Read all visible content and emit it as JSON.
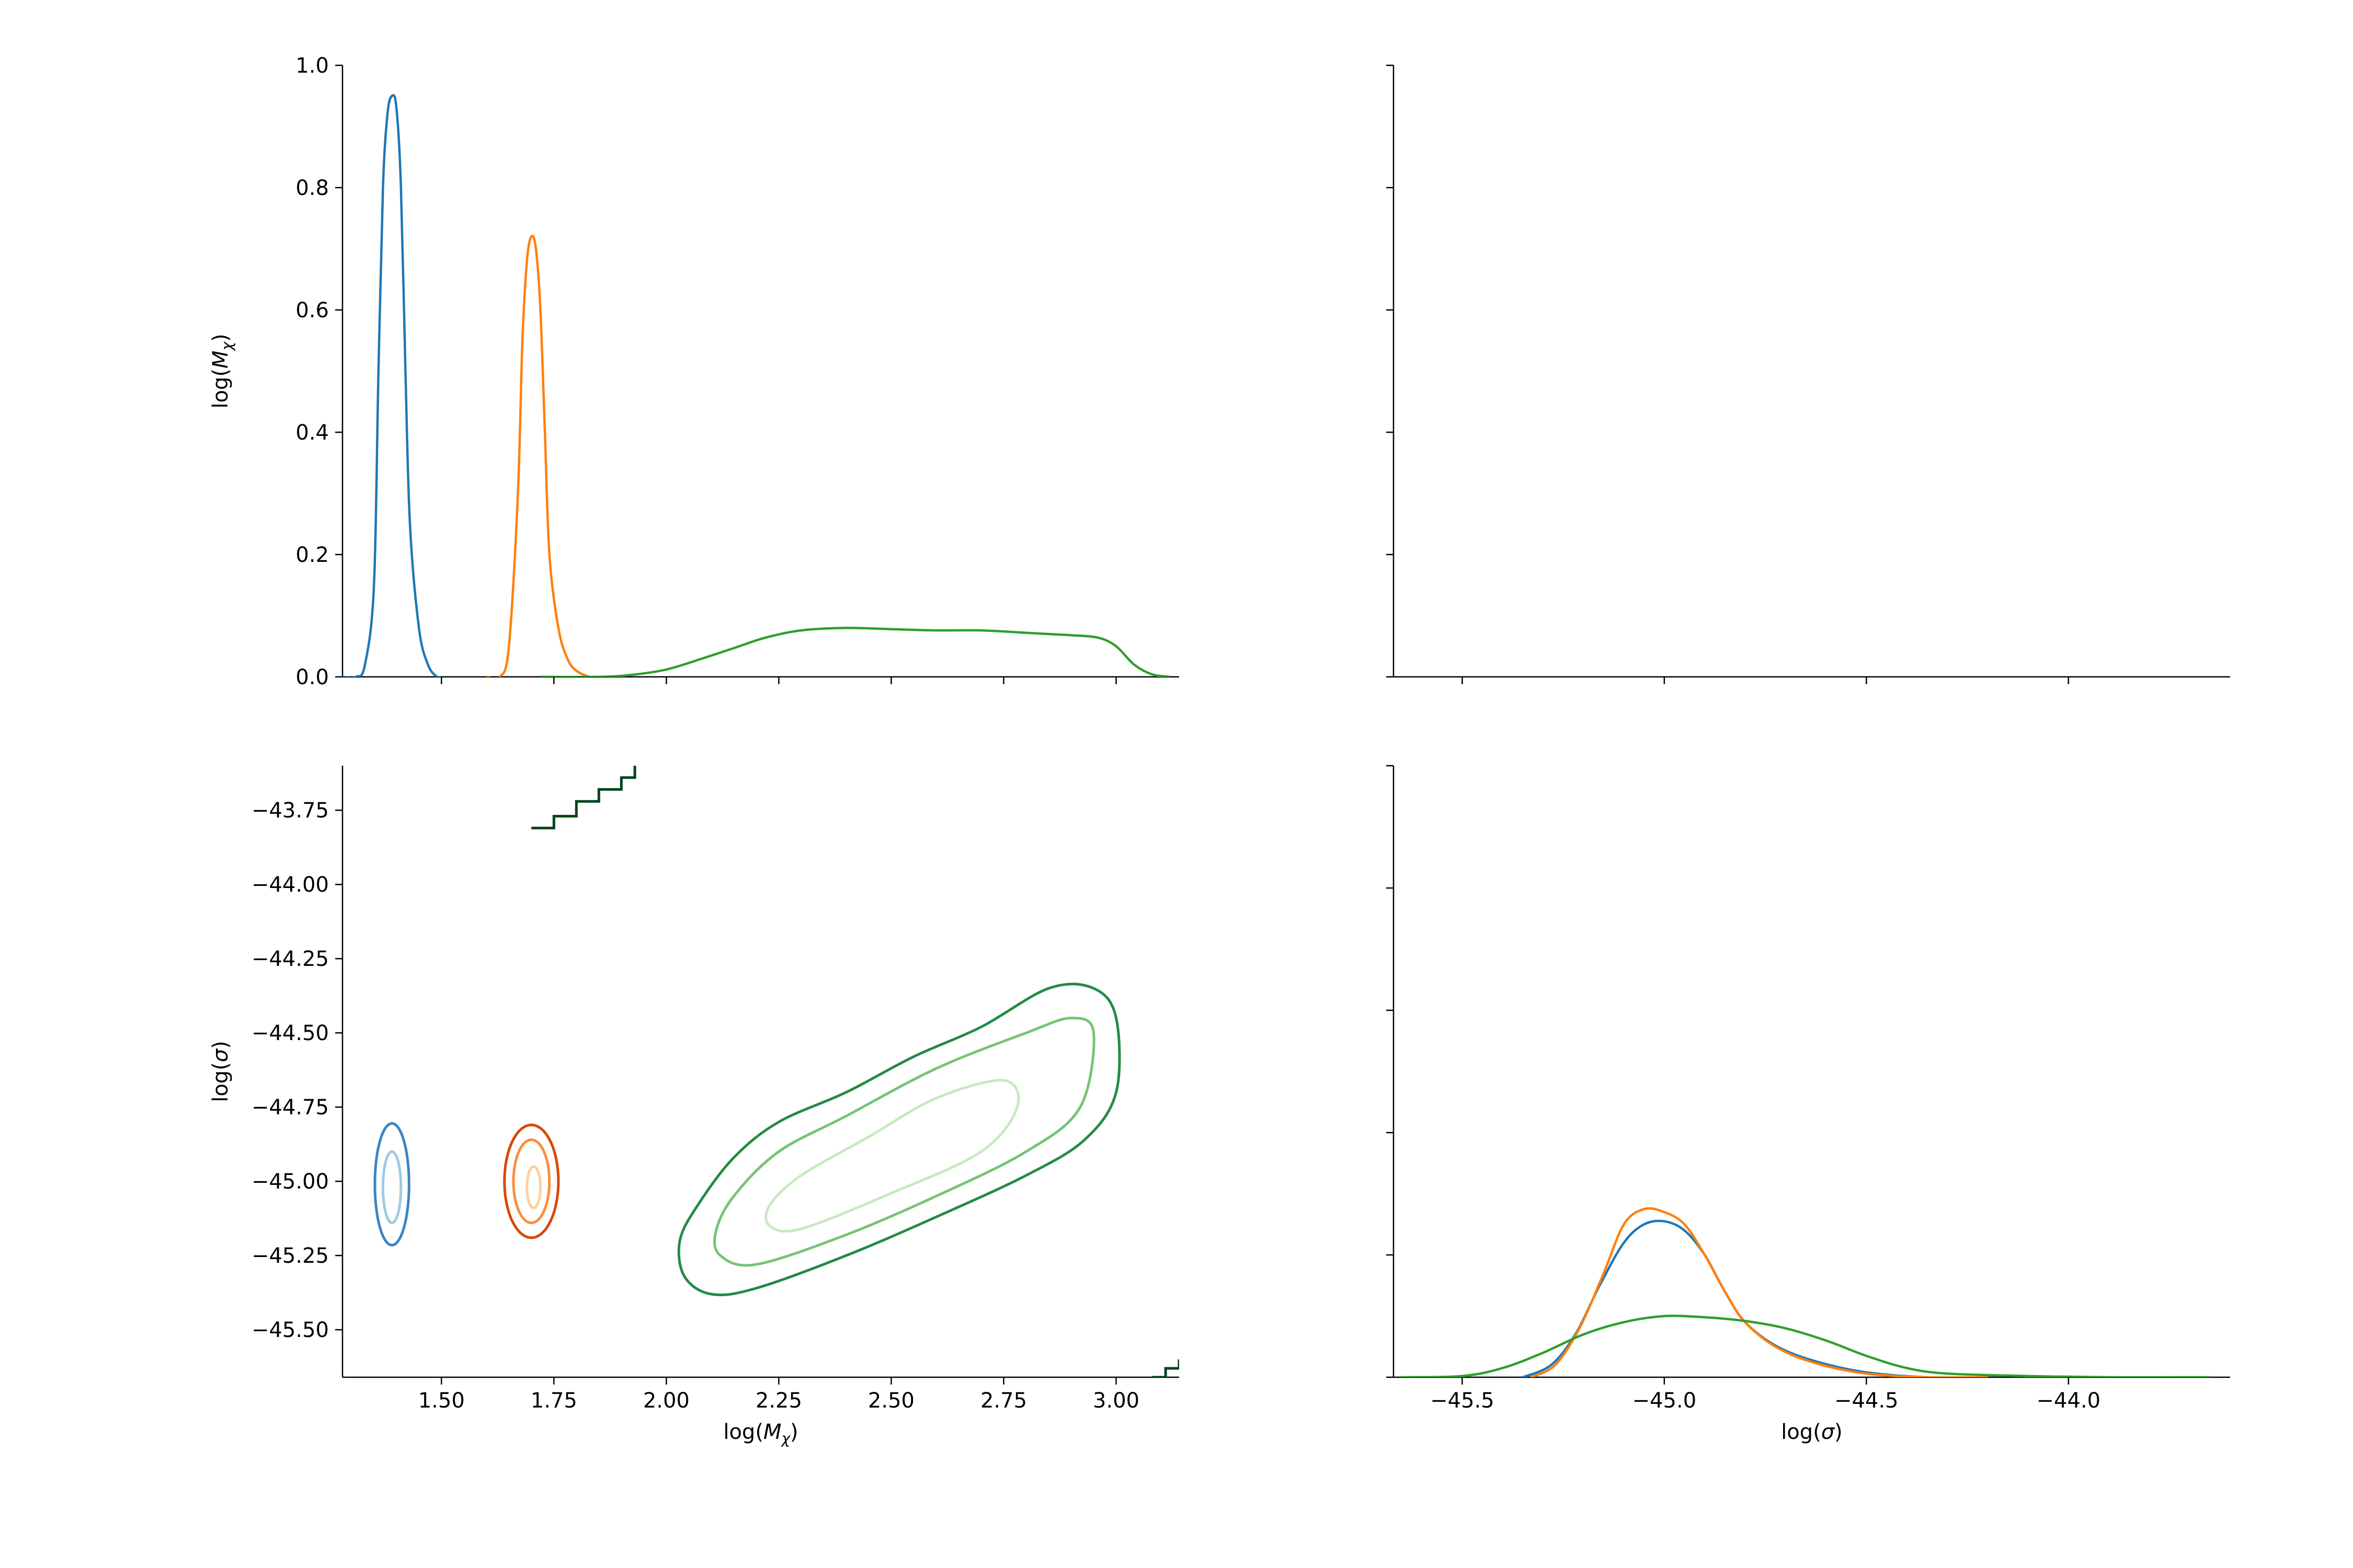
{
  "figure": {
    "layout": "2x2 corner plot"
  },
  "colors": {
    "blue": "#1f77b4",
    "orange": "#ff7f0e",
    "green": "#2ca02c",
    "blue_contours": [
      "#3a85c6",
      "#9ecae1"
    ],
    "orange_contours": [
      "#d94801",
      "#fd8d3c",
      "#fdd0a2"
    ],
    "green_contours": [
      "#238b45",
      "#74c476",
      "#c7e9c0"
    ],
    "stray_contour": "#00441b"
  },
  "chart_data": [
    {
      "id": "top-left",
      "type": "line",
      "title": "",
      "xlabel": "",
      "ylabel": "log(M_χ)",
      "ylabel_parts": [
        "log(",
        "M",
        "χ",
        ")"
      ],
      "xlim": [
        1.28,
        3.14
      ],
      "ylim": [
        0.0,
        1.0
      ],
      "xticks": [
        1.5,
        1.75,
        2.0,
        2.25,
        2.5,
        2.75,
        3.0
      ],
      "show_xtick_labels": false,
      "yticks": [
        0.0,
        0.2,
        0.4,
        0.6,
        0.8,
        1.0
      ],
      "ytick_labels": [
        "0.0",
        "0.2",
        "0.4",
        "0.6",
        "0.8",
        "1.0"
      ],
      "grid": false,
      "legend": "none",
      "series": [
        {
          "color": "blue",
          "points": [
            [
              1.28,
              0.0
            ],
            [
              1.31,
              0.0
            ],
            [
              1.33,
              0.02
            ],
            [
              1.35,
              0.15
            ],
            [
              1.36,
              0.5
            ],
            [
              1.37,
              0.8
            ],
            [
              1.38,
              0.92
            ],
            [
              1.39,
              0.95
            ],
            [
              1.4,
              0.93
            ],
            [
              1.41,
              0.8
            ],
            [
              1.42,
              0.5
            ],
            [
              1.43,
              0.25
            ],
            [
              1.45,
              0.08
            ],
            [
              1.47,
              0.02
            ],
            [
              1.49,
              0.0
            ],
            [
              1.5,
              0.0
            ]
          ]
        },
        {
          "color": "orange",
          "points": [
            [
              1.6,
              0.0
            ],
            [
              1.63,
              0.0
            ],
            [
              1.65,
              0.05
            ],
            [
              1.67,
              0.3
            ],
            [
              1.68,
              0.55
            ],
            [
              1.69,
              0.68
            ],
            [
              1.7,
              0.72
            ],
            [
              1.71,
              0.7
            ],
            [
              1.72,
              0.6
            ],
            [
              1.73,
              0.4
            ],
            [
              1.74,
              0.2
            ],
            [
              1.76,
              0.08
            ],
            [
              1.78,
              0.03
            ],
            [
              1.8,
              0.01
            ],
            [
              1.83,
              0.0
            ],
            [
              1.85,
              0.0
            ]
          ]
        },
        {
          "color": "green",
          "points": [
            [
              1.72,
              0.0
            ],
            [
              1.85,
              0.0
            ],
            [
              1.92,
              0.003
            ],
            [
              2.0,
              0.012
            ],
            [
              2.08,
              0.03
            ],
            [
              2.15,
              0.047
            ],
            [
              2.22,
              0.064
            ],
            [
              2.3,
              0.076
            ],
            [
              2.4,
              0.08
            ],
            [
              2.5,
              0.078
            ],
            [
              2.6,
              0.076
            ],
            [
              2.7,
              0.076
            ],
            [
              2.8,
              0.072
            ],
            [
              2.9,
              0.068
            ],
            [
              2.96,
              0.064
            ],
            [
              3.0,
              0.05
            ],
            [
              3.04,
              0.02
            ],
            [
              3.08,
              0.004
            ],
            [
              3.12,
              0.0
            ]
          ]
        }
      ]
    },
    {
      "id": "top-right",
      "type": "line",
      "title": "",
      "xlabel": "",
      "ylabel": "",
      "xlim": [
        -45.67,
        -43.6
      ],
      "ylim": [
        0.0,
        1.0
      ],
      "xticks": [
        -45.5,
        -45.0,
        -44.5,
        -44.0
      ],
      "show_xtick_labels": false,
      "yticks": [
        0.0,
        0.2,
        0.4,
        0.6,
        0.8,
        1.0
      ],
      "show_ytick_labels": false,
      "grid": false,
      "legend": "none",
      "series": []
    },
    {
      "id": "bottom-left",
      "type": "contour",
      "title": "",
      "xlabel": "log(M_χ)",
      "xlabel_parts": [
        "log(",
        "M",
        "χ",
        ")"
      ],
      "ylabel": "log(σ)",
      "ylabel_parts": [
        "log(",
        "σ",
        ")"
      ],
      "xlim": [
        1.28,
        3.14
      ],
      "ylim": [
        -45.66,
        -43.6
      ],
      "xticks": [
        1.5,
        1.75,
        2.0,
        2.25,
        2.5,
        2.75,
        3.0
      ],
      "xtick_labels": [
        "1.50",
        "1.75",
        "2.00",
        "2.25",
        "2.50",
        "2.75",
        "3.00"
      ],
      "yticks": [
        -45.5,
        -45.25,
        -45.0,
        -44.75,
        -44.5,
        -44.25,
        -44.0,
        -43.75
      ],
      "ytick_labels": [
        "−45.50",
        "−45.25",
        "−45.00",
        "−44.75",
        "−44.50",
        "−44.25",
        "−44.00",
        "−43.75"
      ],
      "grid": false,
      "legend": "none",
      "contours": [
        {
          "color": "blue_contours.0",
          "center": [
            1.39,
            -45.01
          ],
          "rx": 0.038,
          "ry": 0.205
        },
        {
          "color": "blue_contours.1",
          "center": [
            1.39,
            -45.02
          ],
          "rx": 0.02,
          "ry": 0.12
        },
        {
          "color": "orange_contours.0",
          "center": [
            1.7,
            -45.0
          ],
          "rx": 0.06,
          "ry": 0.19
        },
        {
          "color": "orange_contours.1",
          "center": [
            1.7,
            -45.0
          ],
          "rx": 0.04,
          "ry": 0.14
        },
        {
          "color": "orange_contours.2",
          "center": [
            1.705,
            -45.02
          ],
          "rx": 0.015,
          "ry": 0.07
        },
        {
          "color": "green_contours.0",
          "points": [
            [
              2.04,
              -45.32
            ],
            [
              2.1,
              -45.38
            ],
            [
              2.2,
              -45.36
            ],
            [
              2.4,
              -45.25
            ],
            [
              2.6,
              -45.12
            ],
            [
              2.8,
              -44.98
            ],
            [
              2.93,
              -44.86
            ],
            [
              3.0,
              -44.7
            ],
            [
              3.0,
              -44.45
            ],
            [
              2.95,
              -44.35
            ],
            [
              2.85,
              -44.35
            ],
            [
              2.7,
              -44.48
            ],
            [
              2.55,
              -44.58
            ],
            [
              2.4,
              -44.7
            ],
            [
              2.25,
              -44.8
            ],
            [
              2.15,
              -44.92
            ],
            [
              2.07,
              -45.08
            ],
            [
              2.03,
              -45.2
            ]
          ]
        },
        {
          "color": "green_contours.1",
          "points": [
            [
              2.12,
              -45.25
            ],
            [
              2.2,
              -45.28
            ],
            [
              2.4,
              -45.18
            ],
            [
              2.6,
              -45.05
            ],
            [
              2.8,
              -44.9
            ],
            [
              2.92,
              -44.75
            ],
            [
              2.95,
              -44.5
            ],
            [
              2.9,
              -44.45
            ],
            [
              2.8,
              -44.5
            ],
            [
              2.6,
              -44.62
            ],
            [
              2.4,
              -44.78
            ],
            [
              2.25,
              -44.9
            ],
            [
              2.15,
              -45.05
            ],
            [
              2.11,
              -45.17
            ]
          ]
        },
        {
          "color": "green_contours.2",
          "points": [
            [
              2.23,
              -45.15
            ],
            [
              2.3,
              -45.16
            ],
            [
              2.5,
              -45.04
            ],
            [
              2.7,
              -44.9
            ],
            [
              2.78,
              -44.75
            ],
            [
              2.75,
              -44.66
            ],
            [
              2.6,
              -44.72
            ],
            [
              2.45,
              -44.85
            ],
            [
              2.3,
              -44.98
            ],
            [
              2.23,
              -45.08
            ]
          ]
        }
      ],
      "stray_lines": [
        {
          "color": "stray_contour",
          "points": [
            [
              1.7,
              -43.81
            ],
            [
              1.75,
              -43.77
            ],
            [
              1.8,
              -43.72
            ],
            [
              1.85,
              -43.68
            ],
            [
              1.9,
              -43.64
            ],
            [
              1.93,
              -43.6
            ]
          ]
        },
        {
          "color": "stray_contour",
          "points": [
            [
              3.08,
              -45.66
            ],
            [
              3.11,
              -45.63
            ],
            [
              3.14,
              -45.6
            ]
          ]
        }
      ]
    },
    {
      "id": "bottom-right",
      "type": "line",
      "title": "",
      "xlabel": "log(σ)",
      "xlabel_parts": [
        "log(",
        "σ",
        ")"
      ],
      "ylabel": "",
      "xlim": [
        -45.67,
        -43.6
      ],
      "ylim": [
        0.0,
        1.0
      ],
      "xticks": [
        -45.5,
        -45.0,
        -44.5,
        -44.0
      ],
      "xtick_labels": [
        "−45.5",
        "−45.0",
        "−44.5",
        "−44.0"
      ],
      "yticks": [
        0.0,
        0.2,
        0.4,
        0.6,
        0.8,
        1.0
      ],
      "show_ytick_labels": false,
      "grid": false,
      "legend": "none",
      "series": [
        {
          "color": "blue",
          "points": [
            [
              -45.35,
              0.0
            ],
            [
              -45.28,
              0.02
            ],
            [
              -45.22,
              0.07
            ],
            [
              -45.16,
              0.15
            ],
            [
              -45.1,
              0.22
            ],
            [
              -45.05,
              0.25
            ],
            [
              -45.0,
              0.255
            ],
            [
              -44.95,
              0.24
            ],
            [
              -44.9,
              0.2
            ],
            [
              -44.85,
              0.14
            ],
            [
              -44.8,
              0.09
            ],
            [
              -44.72,
              0.05
            ],
            [
              -44.62,
              0.025
            ],
            [
              -44.5,
              0.008
            ],
            [
              -44.35,
              0.0
            ],
            [
              -44.2,
              0.0
            ]
          ]
        },
        {
          "color": "orange",
          "points": [
            [
              -45.33,
              0.0
            ],
            [
              -45.27,
              0.02
            ],
            [
              -45.21,
              0.08
            ],
            [
              -45.15,
              0.17
            ],
            [
              -45.1,
              0.25
            ],
            [
              -45.05,
              0.275
            ],
            [
              -45.0,
              0.27
            ],
            [
              -44.95,
              0.25
            ],
            [
              -44.9,
              0.2
            ],
            [
              -44.85,
              0.14
            ],
            [
              -44.8,
              0.09
            ],
            [
              -44.72,
              0.048
            ],
            [
              -44.62,
              0.022
            ],
            [
              -44.5,
              0.006
            ],
            [
              -44.35,
              0.0
            ],
            [
              -44.2,
              0.0
            ]
          ]
        },
        {
          "color": "green",
          "points": [
            [
              -45.65,
              0.0
            ],
            [
              -45.5,
              0.002
            ],
            [
              -45.4,
              0.015
            ],
            [
              -45.3,
              0.04
            ],
            [
              -45.2,
              0.07
            ],
            [
              -45.1,
              0.09
            ],
            [
              -45.0,
              0.1
            ],
            [
              -44.9,
              0.098
            ],
            [
              -44.8,
              0.092
            ],
            [
              -44.7,
              0.08
            ],
            [
              -44.6,
              0.06
            ],
            [
              -44.5,
              0.035
            ],
            [
              -44.4,
              0.015
            ],
            [
              -44.3,
              0.006
            ],
            [
              -44.1,
              0.002
            ],
            [
              -43.9,
              0.0
            ],
            [
              -43.65,
              0.0
            ]
          ]
        }
      ]
    }
  ]
}
